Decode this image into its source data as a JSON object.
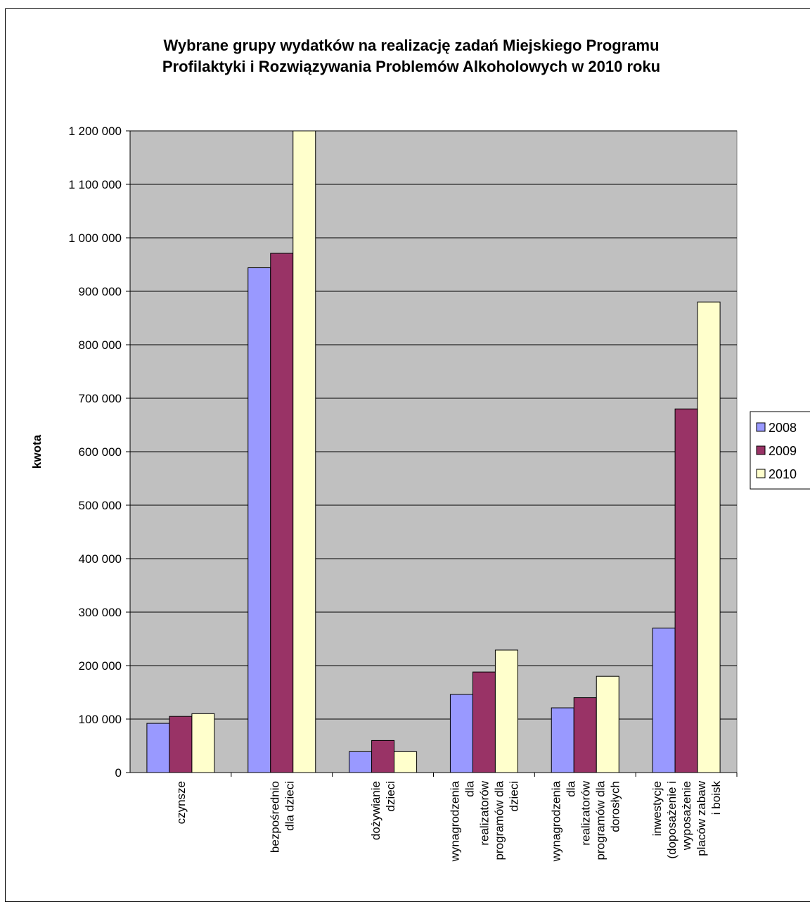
{
  "chart_data": {
    "type": "bar",
    "title": [
      "Wybrane grupy wydatków na realizację zadań Miejskiego Programu",
      "Profilaktyki i Rozwiązywania Problemów Alkoholowych w 2010 roku"
    ],
    "xlabel": "",
    "ylabel": "kwota",
    "ylim": [
      0,
      1200000
    ],
    "yticks": [
      0,
      100000,
      200000,
      300000,
      400000,
      500000,
      600000,
      700000,
      800000,
      900000,
      1000000,
      1100000,
      1200000
    ],
    "ytick_labels": [
      "0",
      "100 000",
      "200 000",
      "300 000",
      "400 000",
      "500 000",
      "600 000",
      "700 000",
      "800 000",
      "900 000",
      "1 000 000",
      "1 100 000",
      "1 200 000"
    ],
    "grid": true,
    "legend_position": "right",
    "categories": [
      [
        "czynsze"
      ],
      [
        "bezpośrednio",
        "dla dzieci"
      ],
      [
        "dożywianie",
        "dzieci"
      ],
      [
        "wynagrodzenia",
        "dla",
        "realizatorów",
        "programów dla",
        "dzieci"
      ],
      [
        "wynagrodzenia",
        "dla",
        "realizatorów",
        "programów dla",
        "dorosłych"
      ],
      [
        "inwestycje",
        "(doposażenie i",
        "wyposażenie",
        "placów zabaw",
        "i boisk"
      ]
    ],
    "series": [
      {
        "name": "2008",
        "color": "#9999ff",
        "values": [
          92000,
          944000,
          39000,
          146000,
          121000,
          270000
        ]
      },
      {
        "name": "2009",
        "color": "#993366",
        "values": [
          105000,
          971000,
          60000,
          188000,
          140000,
          680000
        ]
      },
      {
        "name": "2010",
        "color": "#ffffcc",
        "values": [
          110000,
          1200000,
          39000,
          229000,
          180000,
          880000
        ]
      }
    ],
    "plot_background": "#c0c0c0"
  }
}
